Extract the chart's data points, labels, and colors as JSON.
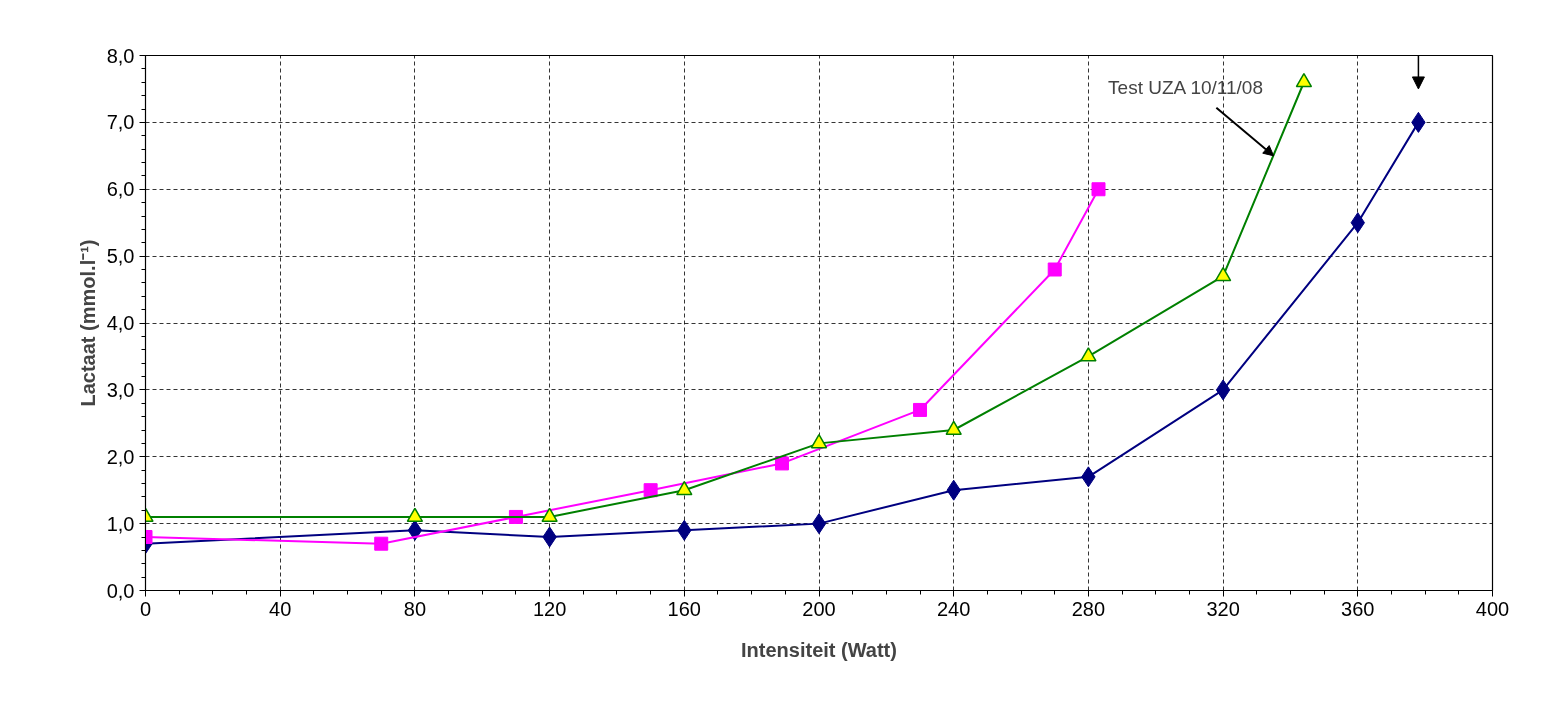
{
  "chart_data": {
    "type": "line",
    "xlabel": "Intensiteit (Watt)",
    "ylabel": "Lactaat (mmol.l⁻¹)",
    "xlim": [
      0,
      400
    ],
    "xticks": [
      0,
      40,
      80,
      120,
      160,
      200,
      240,
      280,
      320,
      360,
      400
    ],
    "ylim": [
      0,
      8
    ],
    "yticks": [
      {
        "value": 0,
        "label": "0,0"
      },
      {
        "value": 1,
        "label": "1,0"
      },
      {
        "value": 2,
        "label": "2,0"
      },
      {
        "value": 3,
        "label": "3,0"
      },
      {
        "value": 4,
        "label": "4,0"
      },
      {
        "value": 5,
        "label": "5,0"
      },
      {
        "value": 6,
        "label": "6,0"
      },
      {
        "value": 7,
        "label": "7,0"
      },
      {
        "value": 8,
        "label": "8,0"
      }
    ],
    "grid": true,
    "annotations": [
      {
        "text": "Test UZA 10/11/08",
        "x": 335,
        "y": 6.5
      }
    ],
    "series": [
      {
        "color": "#000080",
        "marker": "diamond",
        "x": [
          0,
          80,
          120,
          160,
          200,
          240,
          280,
          320,
          360,
          378
        ],
        "values": [
          0.7,
          0.9,
          0.8,
          0.9,
          1.0,
          1.5,
          1.7,
          3.0,
          5.5,
          7.0
        ]
      },
      {
        "color": "#ff00ff",
        "marker": "square",
        "x": [
          0,
          70,
          110,
          150,
          189,
          230,
          270,
          283
        ],
        "values": [
          0.8,
          0.7,
          1.1,
          1.5,
          1.9,
          2.7,
          4.8,
          6.0
        ]
      },
      {
        "color": "#008000",
        "marker": "triangle",
        "x": [
          0,
          80,
          120,
          160,
          200,
          240,
          280,
          320,
          344
        ],
        "values": [
          1.1,
          1.1,
          1.1,
          1.5,
          2.2,
          2.4,
          3.5,
          4.7,
          7.6
        ]
      }
    ]
  }
}
